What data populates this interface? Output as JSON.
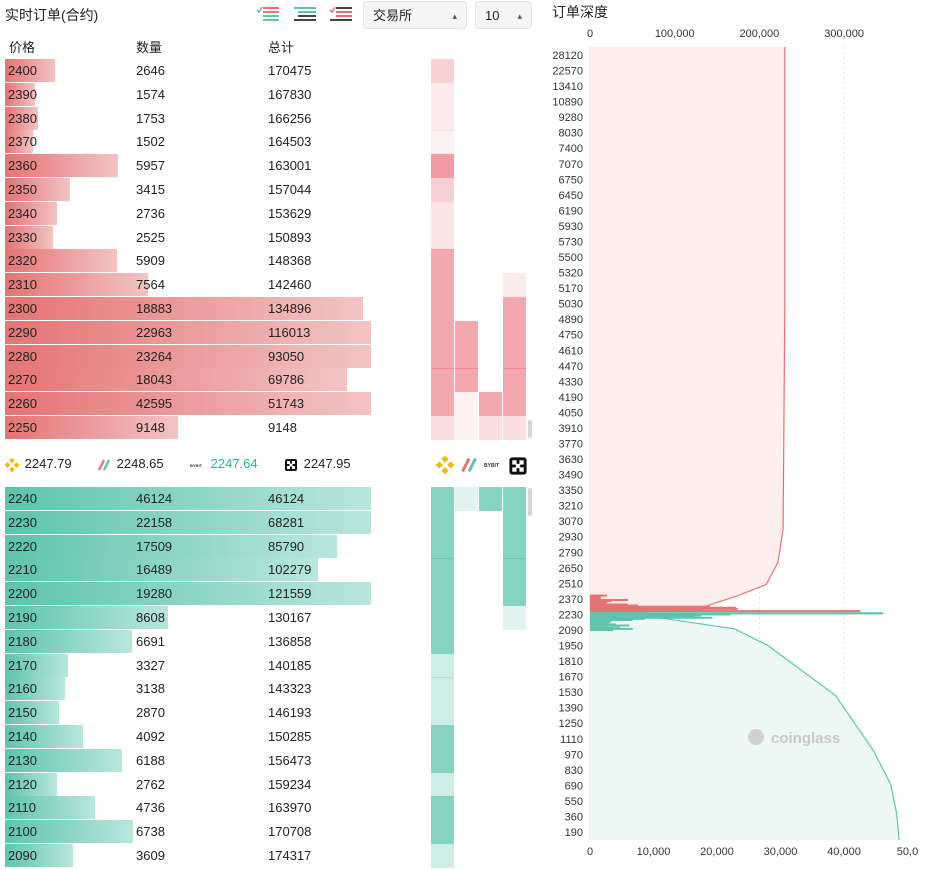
{
  "header": {
    "title": "实时订单(合约)",
    "exchange_select": "交易所",
    "depth_select": "10"
  },
  "columns": {
    "price": "价格",
    "quantity": "数量",
    "total": "总计"
  },
  "asks": [
    {
      "price": "2400",
      "qty": "2646",
      "total": "170475",
      "qv": 2646
    },
    {
      "price": "2390",
      "qty": "1574",
      "total": "167830",
      "qv": 1574
    },
    {
      "price": "2380",
      "qty": "1753",
      "total": "166256",
      "qv": 1753
    },
    {
      "price": "2370",
      "qty": "1502",
      "total": "164503",
      "qv": 1502
    },
    {
      "price": "2360",
      "qty": "5957",
      "total": "163001",
      "qv": 5957
    },
    {
      "price": "2350",
      "qty": "3415",
      "total": "157044",
      "qv": 3415
    },
    {
      "price": "2340",
      "qty": "2736",
      "total": "153629",
      "qv": 2736
    },
    {
      "price": "2330",
      "qty": "2525",
      "total": "150893",
      "qv": 2525
    },
    {
      "price": "2320",
      "qty": "5909",
      "total": "148368",
      "qv": 5909
    },
    {
      "price": "2310",
      "qty": "7564",
      "total": "142460",
      "qv": 7564
    },
    {
      "price": "2300",
      "qty": "18883",
      "total": "134896",
      "qv": 18883
    },
    {
      "price": "2290",
      "qty": "22963",
      "total": "116013",
      "qv": 22963
    },
    {
      "price": "2280",
      "qty": "23264",
      "total": "93050",
      "qv": 23264
    },
    {
      "price": "2270",
      "qty": "18043",
      "total": "69786",
      "qv": 18043
    },
    {
      "price": "2260",
      "qty": "42595",
      "total": "51743",
      "qv": 42595
    },
    {
      "price": "2250",
      "qty": "9148",
      "total": "9148",
      "qv": 9148
    }
  ],
  "bids": [
    {
      "price": "2240",
      "qty": "46124",
      "total": "46124",
      "qv": 46124
    },
    {
      "price": "2230",
      "qty": "22158",
      "total": "68281",
      "qv": 22158
    },
    {
      "price": "2220",
      "qty": "17509",
      "total": "85790",
      "qv": 17509
    },
    {
      "price": "2210",
      "qty": "16489",
      "total": "102279",
      "qv": 16489
    },
    {
      "price": "2200",
      "qty": "19280",
      "total": "121559",
      "qv": 19280
    },
    {
      "price": "2190",
      "qty": "8608",
      "total": "130167",
      "qv": 8608
    },
    {
      "price": "2180",
      "qty": "6691",
      "total": "136858",
      "qv": 6691
    },
    {
      "price": "2170",
      "qty": "3327",
      "total": "140185",
      "qv": 3327
    },
    {
      "price": "2160",
      "qty": "3138",
      "total": "143323",
      "qv": 3138
    },
    {
      "price": "2150",
      "qty": "2870",
      "total": "146193",
      "qv": 2870
    },
    {
      "price": "2140",
      "qty": "4092",
      "total": "150285",
      "qv": 4092
    },
    {
      "price": "2130",
      "qty": "6188",
      "total": "156473",
      "qv": 6188
    },
    {
      "price": "2120",
      "qty": "2762",
      "total": "159234",
      "qv": 2762
    },
    {
      "price": "2110",
      "qty": "4736",
      "total": "163970",
      "qv": 4736
    },
    {
      "price": "2100",
      "qty": "6738",
      "total": "170708",
      "qv": 6738
    },
    {
      "price": "2090",
      "qty": "3609",
      "total": "174317",
      "qv": 3609
    }
  ],
  "exchange_prices": [
    {
      "name": "binance-icon",
      "price": "2247.79",
      "color": "#222222"
    },
    {
      "name": "bybit-icon",
      "price": "2248.65",
      "color": "#222222"
    },
    {
      "name": "bitget-icon",
      "price": "2247.64",
      "color": "#2bb394"
    },
    {
      "name": "okx-icon",
      "price": "2247.95",
      "color": "#222222"
    }
  ],
  "heat_ask_levels": [
    [
      0.35,
      0,
      0,
      0
    ],
    [
      0.15,
      0,
      0,
      0
    ],
    [
      0.15,
      0,
      0,
      0
    ],
    [
      0.1,
      0,
      0,
      0
    ],
    [
      0.75,
      0,
      0,
      0
    ],
    [
      0.35,
      0,
      0,
      0
    ],
    [
      0.2,
      0,
      0,
      0
    ],
    [
      0.2,
      0,
      0,
      0
    ],
    [
      0.65,
      0,
      0,
      0
    ],
    [
      0.65,
      0,
      0,
      0.15
    ],
    [
      0.65,
      0,
      0,
      0.65
    ],
    [
      0.65,
      0.65,
      0,
      0.65
    ],
    [
      0.65,
      0.65,
      0,
      0.65
    ],
    [
      0.65,
      0.65,
      0,
      0.65
    ],
    [
      0.65,
      0.1,
      0.65,
      0.65
    ],
    [
      0.25,
      0.1,
      0.25,
      0.25
    ]
  ],
  "heat_bid_levels": [
    [
      0.75,
      0.2,
      0.75,
      0.75
    ],
    [
      0.75,
      0,
      0,
      0.75
    ],
    [
      0.75,
      0,
      0,
      0.75
    ],
    [
      0.75,
      0,
      0,
      0.75
    ],
    [
      0.75,
      0,
      0,
      0.75
    ],
    [
      0.75,
      0,
      0,
      0.2
    ],
    [
      0.75,
      0,
      0,
      0
    ],
    [
      0.3,
      0,
      0,
      0
    ],
    [
      0.3,
      0,
      0,
      0
    ],
    [
      0.3,
      0,
      0,
      0
    ],
    [
      0.75,
      0,
      0,
      0
    ],
    [
      0.75,
      0,
      0,
      0
    ],
    [
      0.3,
      0,
      0,
      0
    ],
    [
      0.75,
      0,
      0,
      0
    ],
    [
      0.75,
      0,
      0,
      0
    ],
    [
      0.3,
      0,
      0,
      0
    ]
  ],
  "colors": {
    "ask": "#e57373",
    "bid": "#5ec4ad",
    "ask_fill": "#fdeeee",
    "bid_fill": "#edf7f4",
    "bitget": "#2bb394"
  },
  "chart_data": {
    "type": "area",
    "title": "订单深度",
    "top_axis_ticks": [
      "0",
      "100,000",
      "200,000",
      "300,000"
    ],
    "bottom_axis_ticks": [
      "0",
      "10,000",
      "20,000",
      "30,000",
      "40,000",
      "50,0"
    ],
    "top_axis_range": [
      0,
      400000
    ],
    "bottom_axis_range": [
      0,
      50000
    ],
    "price_ticks": [
      "28120",
      "22570",
      "13410",
      "10890",
      "9280",
      "8030",
      "7400",
      "7070",
      "6750",
      "6450",
      "6190",
      "5930",
      "5730",
      "5500",
      "5320",
      "5170",
      "5030",
      "4890",
      "4750",
      "4610",
      "4470",
      "4330",
      "4190",
      "4050",
      "3910",
      "3770",
      "3630",
      "3490",
      "3350",
      "3210",
      "3070",
      "2930",
      "2790",
      "2650",
      "2510",
      "2370",
      "2230",
      "2090",
      "1950",
      "1810",
      "1670",
      "1530",
      "1390",
      "1250",
      "1110",
      "970",
      "830",
      "690",
      "550",
      "360",
      "190"
    ],
    "watermark": "coinglass",
    "series": [
      {
        "name": "",
        "side": "ask",
        "cumulative": [
          [
            28120,
            230000
          ],
          [
            5000,
            230000
          ],
          [
            3000,
            228000
          ],
          [
            2700,
            222000
          ],
          [
            2500,
            208000
          ],
          [
            2400,
            175000
          ],
          [
            2300,
            134896
          ],
          [
            2260,
            51743
          ],
          [
            2250,
            9148
          ]
        ]
      },
      {
        "name": "",
        "side": "bid",
        "cumulative": [
          [
            2240,
            46124
          ],
          [
            2100,
            170708
          ],
          [
            1950,
            210000
          ],
          [
            1500,
            290000
          ],
          [
            1000,
            335000
          ],
          [
            700,
            355000
          ],
          [
            400,
            362000
          ],
          [
            190,
            365000
          ]
        ]
      }
    ],
    "largest_level": {
      "price": "2240",
      "quantity": 46124
    }
  }
}
